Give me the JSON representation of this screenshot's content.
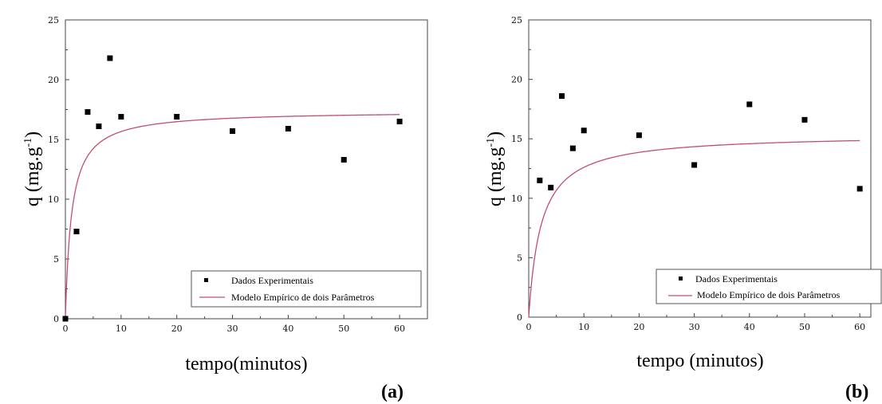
{
  "chart_data": [
    {
      "type": "scatter",
      "panel_label": "(a)",
      "xlabel": "tempo(minutos)",
      "ylabel": "q (mg.g",
      "ylabel_sup": "-1",
      "ylabel_close": ")",
      "xlim": [
        0,
        65
      ],
      "ylim": [
        0,
        25
      ],
      "xticks": [
        0,
        10,
        20,
        30,
        40,
        50,
        60
      ],
      "yticks": [
        0,
        5,
        10,
        15,
        20,
        25
      ],
      "legend": {
        "position": "bottom-right",
        "entries": [
          "Dados Experimentais",
          "Modelo Empírico de dois Parâmetros"
        ]
      },
      "series": [
        {
          "name": "Dados Experimentais",
          "style": "markers",
          "color": "#000000",
          "x": [
            0,
            2,
            4,
            6,
            8,
            10,
            20,
            30,
            40,
            50,
            60
          ],
          "y": [
            0,
            7.3,
            17.3,
            16.1,
            21.8,
            16.9,
            16.9,
            15.7,
            15.9,
            13.3,
            16.5
          ]
        },
        {
          "name": "Modelo Empírico de dois Parâmetros",
          "style": "line",
          "color": "#c0506a",
          "model": {
            "qmax": 17.4,
            "k": 0.9
          }
        }
      ]
    },
    {
      "type": "scatter",
      "panel_label": "(b)",
      "xlabel": "tempo (minutos)",
      "ylabel": "q (mg.g",
      "ylabel_sup": "-1",
      "ylabel_close": ")",
      "xlim": [
        0,
        62
      ],
      "ylim": [
        0,
        25
      ],
      "xticks": [
        0,
        10,
        20,
        30,
        40,
        50,
        60
      ],
      "yticks": [
        0,
        5,
        10,
        15,
        20,
        25
      ],
      "legend": {
        "position": "bottom-right",
        "entries": [
          "Dados Experimentais",
          "Modelo Empírico de dois Parâmetros"
        ]
      },
      "series": [
        {
          "name": "Dados Experimentais",
          "style": "markers",
          "color": "#000000",
          "x": [
            2,
            4,
            6,
            8,
            10,
            20,
            30,
            40,
            50,
            60
          ],
          "y": [
            11.5,
            10.9,
            18.6,
            14.2,
            15.7,
            15.3,
            12.8,
            17.9,
            16.6,
            10.8
          ]
        },
        {
          "name": "Modelo Empírico de dois Parâmetros",
          "style": "line",
          "color": "#c0506a",
          "model": {
            "qmax": 15.4,
            "k": 0.45
          }
        }
      ]
    }
  ]
}
